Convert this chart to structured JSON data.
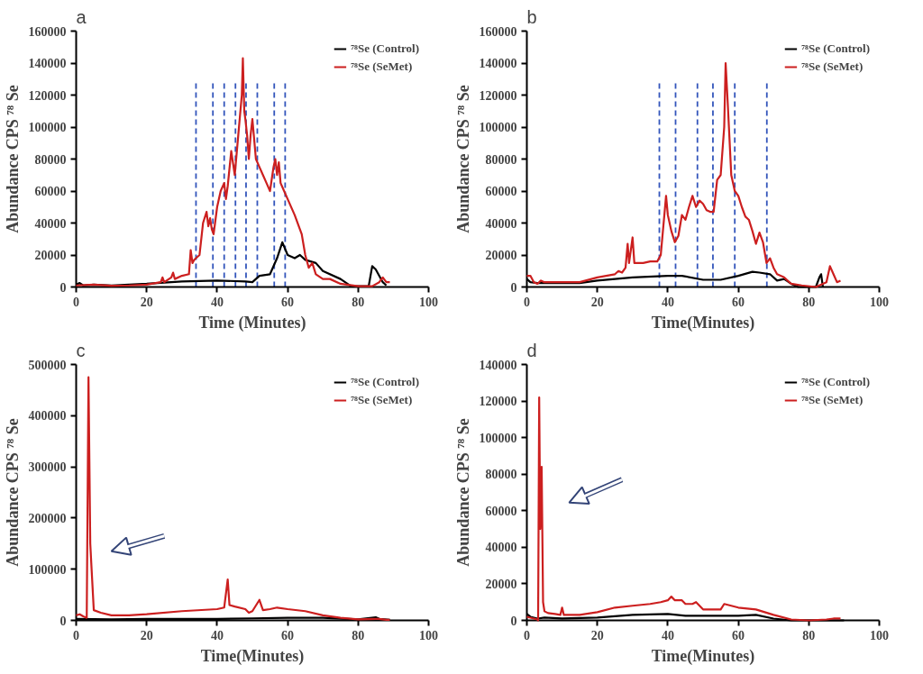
{
  "chart_data": [
    {
      "type": "line",
      "title": "a",
      "xlabel": "Time (Minutes)",
      "ylabel": "Abundance CPS ⁷⁸ Se",
      "xlim": [
        0,
        100
      ],
      "xticks": [
        0,
        20,
        40,
        60,
        80,
        100
      ],
      "ylim": [
        0,
        160000
      ],
      "yticks": [
        0,
        20000,
        40000,
        60000,
        80000,
        100000,
        120000,
        140000,
        160000
      ],
      "grid": false,
      "legend": "top right",
      "ref_lines": [
        {
          "axis": "x",
          "value": 34,
          "color": "#3355bb",
          "line_style": "dashed"
        },
        {
          "axis": "x",
          "value": 38.8,
          "color": "#3355bb",
          "line_style": "dashed"
        },
        {
          "axis": "x",
          "value": 42,
          "color": "#3355bb",
          "line_style": "dashed"
        },
        {
          "axis": "x",
          "value": 45.2,
          "color": "#3355bb",
          "line_style": "dashed"
        },
        {
          "axis": "x",
          "value": 48.2,
          "color": "#3355bb",
          "line_style": "dashed"
        },
        {
          "axis": "x",
          "value": 51.4,
          "color": "#3355bb",
          "line_style": "dashed"
        },
        {
          "axis": "x",
          "value": 56.2,
          "color": "#3355bb",
          "line_style": "dashed"
        },
        {
          "axis": "x",
          "value": 59.3,
          "color": "#3355bb",
          "line_style": "dashed"
        }
      ],
      "series": [
        {
          "name": "⁷⁸Se (Control)",
          "color": "#000000",
          "x": [
            0,
            1,
            2,
            5,
            10,
            20,
            30,
            40,
            48,
            50,
            52,
            55,
            57,
            58.5,
            60,
            62,
            63.5,
            65,
            68,
            70,
            75,
            78,
            83,
            84,
            85,
            87,
            88
          ],
          "values": [
            1500,
            2500,
            1000,
            1500,
            1000,
            2000,
            3500,
            4000,
            3500,
            3000,
            7000,
            8000,
            18000,
            28000,
            20000,
            18000,
            20000,
            17000,
            15000,
            10000,
            5000,
            500,
            500,
            13000,
            11000,
            3000,
            1000
          ]
        },
        {
          "name": "⁷⁸Se (SeMet)",
          "color": "#cc1f1f",
          "x": [
            0,
            5,
            10,
            15,
            20,
            24,
            24.5,
            25,
            27,
            27.5,
            28,
            30,
            32,
            32.5,
            33,
            33.5,
            34,
            35,
            36,
            37,
            37.5,
            38,
            38.5,
            39,
            40,
            41,
            42,
            42.5,
            43,
            44,
            45,
            46,
            47,
            47.3,
            47.7,
            48,
            48.5,
            49,
            49.5,
            50,
            51,
            52,
            53,
            54,
            55,
            56,
            56.5,
            57,
            57.5,
            58,
            59,
            60,
            62,
            64,
            65,
            66,
            67,
            68,
            70,
            72,
            75,
            80,
            84,
            86,
            87,
            88,
            89
          ],
          "values": [
            1000,
            1500,
            800,
            1000,
            1500,
            3000,
            6000,
            3000,
            6000,
            9000,
            5000,
            7000,
            8000,
            23000,
            15000,
            17000,
            18000,
            20000,
            40000,
            47000,
            38000,
            43000,
            36000,
            33000,
            50000,
            60000,
            65000,
            55000,
            63000,
            85000,
            70000,
            95000,
            120000,
            143000,
            110000,
            105000,
            95000,
            80000,
            95000,
            105000,
            80000,
            75000,
            70000,
            65000,
            60000,
            75000,
            80000,
            70000,
            78000,
            65000,
            60000,
            55000,
            45000,
            33000,
            20000,
            12000,
            15000,
            8000,
            5000,
            5000,
            2000,
            500,
            500,
            3000,
            6000,
            3000,
            3000
          ]
        }
      ]
    },
    {
      "type": "line",
      "title": "b",
      "xlabel": "Time(Minutes)",
      "ylabel": "Abundance CPS ⁷⁸ Se",
      "xlim": [
        0,
        100
      ],
      "xticks": [
        0,
        20,
        40,
        60,
        80,
        100
      ],
      "ylim": [
        0,
        160000
      ],
      "yticks": [
        0,
        20000,
        40000,
        60000,
        80000,
        100000,
        120000,
        140000,
        160000
      ],
      "grid": false,
      "legend": "top right",
      "ref_lines": [
        {
          "axis": "x",
          "value": 37.6,
          "color": "#3355bb",
          "line_style": "dashed"
        },
        {
          "axis": "x",
          "value": 42.2,
          "color": "#3355bb",
          "line_style": "dashed"
        },
        {
          "axis": "x",
          "value": 48.4,
          "color": "#3355bb",
          "line_style": "dashed"
        },
        {
          "axis": "x",
          "value": 52.8,
          "color": "#3355bb",
          "line_style": "dashed"
        },
        {
          "axis": "x",
          "value": 59,
          "color": "#3355bb",
          "line_style": "dashed"
        },
        {
          "axis": "x",
          "value": 68.1,
          "color": "#3355bb",
          "line_style": "dashed"
        }
      ],
      "series": [
        {
          "name": "⁷⁸Se (Control)",
          "color": "#000000",
          "x": [
            0,
            1,
            3,
            10,
            15,
            20,
            30,
            40,
            44,
            50,
            55,
            60,
            64,
            66,
            69,
            71,
            73,
            75,
            77,
            82,
            83,
            83.5,
            84
          ],
          "values": [
            5000,
            3000,
            2500,
            2500,
            2500,
            4000,
            6000,
            7000,
            7000,
            4500,
            4500,
            7000,
            9500,
            9000,
            8000,
            4000,
            5000,
            2000,
            0,
            0,
            6000,
            8000,
            0
          ]
        },
        {
          "name": "⁷⁸Se (SeMet)",
          "color": "#cc1f1f",
          "x": [
            0,
            1,
            2,
            3,
            4,
            5,
            10,
            15,
            20,
            25,
            26,
            27,
            28,
            28.6,
            29,
            30,
            30.5,
            33,
            35,
            37,
            38,
            39.5,
            40,
            41,
            42,
            43,
            44,
            45,
            46,
            47,
            48,
            49,
            50,
            51,
            52,
            53,
            54,
            55,
            56,
            56.4,
            57,
            58,
            59,
            60,
            61,
            62,
            63,
            64,
            65,
            66,
            67,
            68,
            69,
            70,
            71,
            73,
            75,
            78,
            82,
            84,
            85,
            86,
            87,
            88,
            89
          ],
          "values": [
            7000,
            7000,
            3000,
            2000,
            4000,
            3000,
            3000,
            3000,
            6000,
            8000,
            10000,
            9000,
            12000,
            27000,
            15000,
            31000,
            15000,
            15000,
            16000,
            16000,
            20000,
            57000,
            45000,
            35000,
            28000,
            32000,
            45000,
            42000,
            50000,
            57000,
            50000,
            54000,
            52000,
            48000,
            47000,
            47000,
            67000,
            70000,
            100000,
            140000,
            115000,
            70000,
            60000,
            57000,
            50000,
            44000,
            42000,
            35000,
            27000,
            34000,
            28000,
            15000,
            18000,
            12000,
            8000,
            6000,
            2000,
            1000,
            0,
            2000,
            3000,
            13000,
            8000,
            3000,
            4000
          ]
        }
      ]
    },
    {
      "type": "line",
      "title": "c",
      "xlabel": "Time(Minutes)",
      "ylabel": "Abundance CPS ⁷⁸ Se",
      "xlim": [
        0,
        100
      ],
      "xticks": [
        0,
        20,
        40,
        60,
        80,
        100
      ],
      "ylim": [
        0,
        500000
      ],
      "yticks": [
        0,
        100000,
        200000,
        300000,
        400000,
        500000
      ],
      "grid": false,
      "legend": "top right",
      "series": [
        {
          "name": "⁷⁸Se (Control)",
          "color": "#000000",
          "x": [
            0,
            10,
            20,
            40,
            50,
            60,
            70,
            80,
            85,
            86,
            89
          ],
          "values": [
            3000,
            2000,
            3000,
            3000,
            4000,
            5000,
            5000,
            2000,
            6000,
            3000,
            1000
          ]
        },
        {
          "name": "⁷⁸Se (SeMet)",
          "color": "#cc1f1f",
          "x": [
            0,
            1,
            2,
            3,
            3.5,
            4,
            4.3,
            5,
            7,
            10,
            15,
            20,
            30,
            40,
            42,
            43,
            43.5,
            45,
            48,
            49,
            50,
            52,
            53,
            55,
            57,
            60,
            65,
            70,
            75,
            80,
            85,
            86,
            88,
            89
          ],
          "values": [
            10000,
            12000,
            8000,
            5000,
            475000,
            150000,
            110000,
            20000,
            15000,
            10000,
            10000,
            12000,
            18000,
            22000,
            25000,
            80000,
            30000,
            27000,
            22000,
            15000,
            18000,
            40000,
            20000,
            22000,
            25000,
            22000,
            18000,
            10000,
            5000,
            2000,
            3000,
            3000,
            1000,
            1000
          ]
        }
      ]
    },
    {
      "type": "line",
      "title": "d",
      "xlabel": "Time(Minutes)",
      "ylabel": "Abundance CPS ⁷⁸ Se",
      "xlim": [
        0,
        100
      ],
      "xticks": [
        0,
        20,
        40,
        60,
        80,
        100
      ],
      "ylim": [
        0,
        140000
      ],
      "yticks": [
        0,
        20000,
        40000,
        60000,
        80000,
        100000,
        120000,
        140000
      ],
      "grid": false,
      "legend": "top right",
      "series": [
        {
          "name": "⁷⁸Se (Control)",
          "color": "#000000",
          "x": [
            0,
            1,
            3,
            5,
            10,
            20,
            30,
            40,
            45,
            50,
            55,
            60,
            65,
            70,
            75,
            90
          ],
          "values": [
            3500,
            2000,
            1000,
            1500,
            1000,
            1500,
            3000,
            3500,
            2500,
            2500,
            2500,
            2500,
            3000,
            1000,
            0,
            0
          ]
        },
        {
          "name": "⁷⁸Se (SeMet)",
          "color": "#cc1f1f",
          "x": [
            0,
            2,
            3,
            3.2,
            3.5,
            3.8,
            4.2,
            4.6,
            5,
            6,
            8,
            9.5,
            10,
            10.5,
            15,
            20,
            25,
            30,
            35,
            38,
            40,
            41,
            42,
            44,
            45,
            47,
            48,
            50,
            55,
            56,
            58,
            60,
            65,
            70,
            75,
            80,
            85,
            87,
            89
          ],
          "values": [
            2000,
            1000,
            500,
            0,
            122000,
            50000,
            84000,
            10000,
            5000,
            4000,
            3500,
            3000,
            7000,
            3000,
            3000,
            4500,
            7000,
            8000,
            9000,
            10000,
            11000,
            13000,
            11000,
            11000,
            9000,
            9000,
            10000,
            6000,
            6000,
            9000,
            8000,
            7000,
            6000,
            3000,
            500,
            0,
            500,
            1000,
            1000
          ]
        }
      ]
    }
  ]
}
